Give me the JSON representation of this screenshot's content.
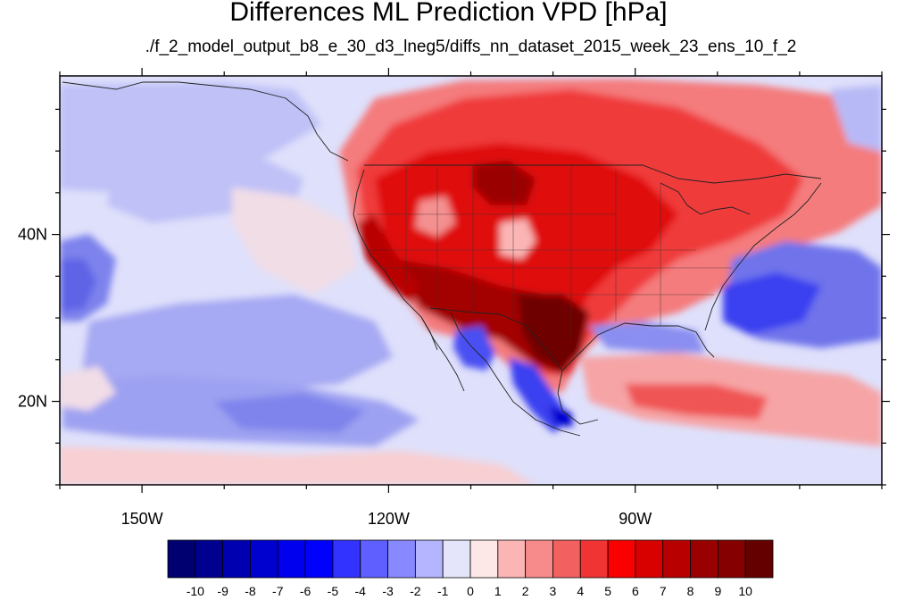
{
  "title": "Differences ML Prediction VPD [hPa]",
  "subtitle": "./f_2_model_output_b8_e_30_d3_lneg5/diffs_nn_dataset_2015_week_23_ens_10_f_2",
  "map": {
    "lon_range": [
      -160,
      -60
    ],
    "lat_range": [
      10,
      59
    ],
    "lon_ticks": [
      {
        "value": -150,
        "label": "150W"
      },
      {
        "value": -120,
        "label": "120W"
      },
      {
        "value": -90,
        "label": "90W"
      }
    ],
    "lat_ticks": [
      {
        "value": 40,
        "label": "40N"
      },
      {
        "value": 20,
        "label": "20N"
      }
    ],
    "units": "hPa"
  },
  "colorbar": {
    "labels": [
      "-10",
      "-9",
      "-8",
      "-7",
      "-6",
      "-5",
      "-4",
      "-3",
      "-2",
      "-1",
      "0",
      "1",
      "2",
      "3",
      "4",
      "5",
      "6",
      "7",
      "8",
      "9",
      "10"
    ],
    "colors": [
      "#000070",
      "#00008f",
      "#0000b0",
      "#0000cf",
      "#0000ee",
      "#0000ff",
      "#3333ff",
      "#5f5fff",
      "#8888ff",
      "#b4b4ff",
      "#e4e4fa",
      "#fde7e7",
      "#fbb5b5",
      "#f78a8a",
      "#f26060",
      "#f03434",
      "#fa0000",
      "#d90000",
      "#b80000",
      "#990000",
      "#850000",
      "#640000"
    ]
  }
}
